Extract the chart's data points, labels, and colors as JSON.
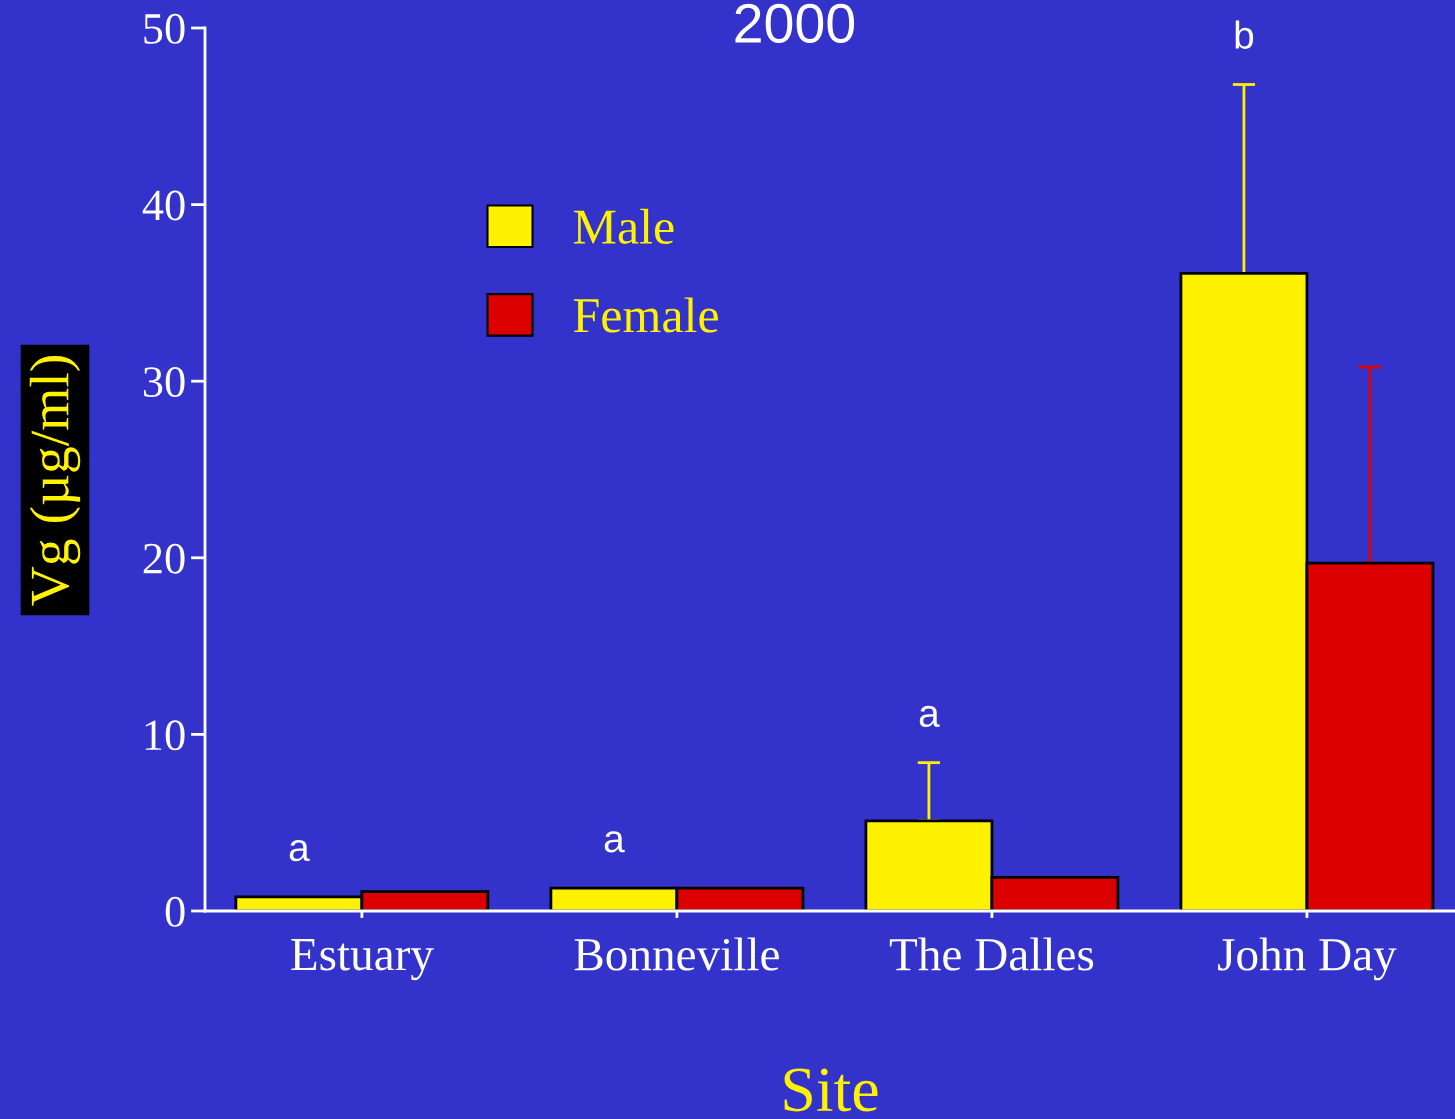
{
  "chart_data": {
    "type": "bar",
    "title": "2000",
    "xlabel": "Site",
    "ylabel": "Vg (µg/ml)",
    "categories": [
      "Estuary",
      "Bonneville",
      "The Dalles",
      "John Day"
    ],
    "series": [
      {
        "name": "Male",
        "color": "#fff200",
        "values": [
          0.8,
          1.3,
          5.1,
          36.1
        ],
        "errors": [
          null,
          null,
          [
            5.1,
            8.4
          ],
          [
            36.1,
            46.8
          ]
        ]
      },
      {
        "name": "Female",
        "color": "#dd0000",
        "values": [
          1.1,
          1.3,
          1.9,
          19.7
        ],
        "errors": [
          null,
          null,
          null,
          [
            19.7,
            30.8
          ]
        ]
      }
    ],
    "ylim": [
      0,
      50
    ],
    "yticks": [
      0,
      10,
      20,
      30,
      40,
      50
    ],
    "grid": false,
    "legend": "top left",
    "annotations": [
      "a",
      "a",
      "a",
      "b"
    ]
  }
}
